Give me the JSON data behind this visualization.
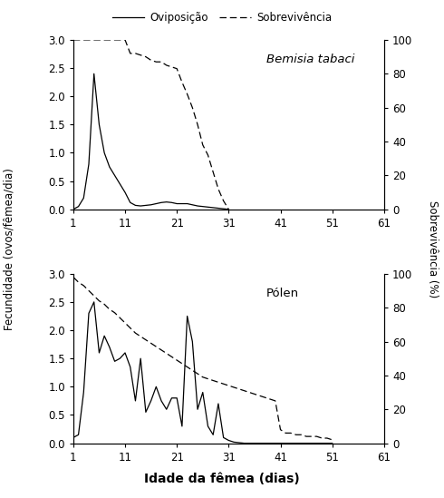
{
  "title1": "Bemisia tabaci",
  "title2": "Pólen",
  "xlabel": "Idade da fêmea (dias)",
  "ylabel_left": "Fecundidade (ovos/fêmea/dia)",
  "ylabel_right": "Sobrevivência (%)",
  "legend_oviposition": "Oviposição",
  "legend_survival": "Sobrevivência",
  "xticks": [
    1,
    11,
    21,
    31,
    41,
    51,
    61
  ],
  "yticks_left": [
    0,
    0.5,
    1,
    1.5,
    2,
    2.5,
    3
  ],
  "yticks_right": [
    0,
    20,
    40,
    60,
    80,
    100
  ],
  "bt_oviposition_x": [
    1,
    2,
    3,
    4,
    5,
    6,
    7,
    8,
    9,
    10,
    11,
    12,
    13,
    14,
    15,
    16,
    17,
    18,
    19,
    20,
    21,
    22,
    23,
    24,
    25,
    26,
    27,
    28,
    29,
    30,
    31
  ],
  "bt_oviposition_y": [
    0.0,
    0.05,
    0.2,
    0.8,
    2.4,
    1.5,
    1.0,
    0.75,
    0.6,
    0.45,
    0.3,
    0.12,
    0.07,
    0.06,
    0.07,
    0.08,
    0.1,
    0.12,
    0.13,
    0.12,
    0.1,
    0.1,
    0.1,
    0.08,
    0.06,
    0.05,
    0.04,
    0.03,
    0.02,
    0.01,
    0.0
  ],
  "bt_survival_x": [
    1,
    2,
    3,
    4,
    5,
    6,
    7,
    8,
    9,
    10,
    11,
    12,
    13,
    14,
    15,
    16,
    17,
    18,
    19,
    20,
    21,
    22,
    23,
    24,
    25,
    26,
    27,
    28,
    29,
    30,
    31
  ],
  "bt_survival_y": [
    100,
    100,
    100,
    100,
    100,
    100,
    100,
    100,
    100,
    100,
    100,
    92,
    92,
    91,
    90,
    88,
    87,
    87,
    85,
    84,
    83,
    75,
    68,
    60,
    50,
    38,
    32,
    22,
    12,
    5,
    0
  ],
  "polen_oviposition_x": [
    1,
    2,
    3,
    4,
    5,
    6,
    7,
    8,
    9,
    10,
    11,
    12,
    13,
    14,
    15,
    16,
    17,
    18,
    19,
    20,
    21,
    22,
    23,
    24,
    25,
    26,
    27,
    28,
    29,
    30,
    31,
    32,
    33,
    34,
    35,
    36,
    37,
    38,
    39,
    40,
    41,
    42,
    43,
    44,
    45,
    46,
    47,
    48,
    49,
    50,
    51
  ],
  "polen_oviposition_y": [
    0.1,
    0.15,
    0.9,
    2.3,
    2.5,
    1.6,
    1.9,
    1.7,
    1.45,
    1.5,
    1.6,
    1.35,
    0.75,
    1.5,
    0.55,
    0.75,
    1.0,
    0.75,
    0.6,
    0.8,
    0.8,
    0.3,
    2.25,
    1.8,
    0.6,
    0.9,
    0.3,
    0.15,
    0.7,
    0.1,
    0.05,
    0.02,
    0.01,
    0.0,
    0.0,
    0.0,
    0.0,
    0.0,
    0.0,
    0.0,
    0.0,
    0.0,
    0.0,
    0.0,
    0.0,
    0.0,
    0.0,
    0.0,
    0.0,
    0.0,
    0.0
  ],
  "polen_survival_x": [
    1,
    2,
    3,
    4,
    5,
    6,
    7,
    8,
    9,
    10,
    11,
    12,
    13,
    14,
    15,
    16,
    17,
    18,
    19,
    20,
    21,
    22,
    23,
    24,
    25,
    26,
    27,
    28,
    29,
    30,
    31,
    32,
    33,
    34,
    35,
    36,
    37,
    38,
    39,
    40,
    41,
    42,
    43,
    44,
    45,
    46,
    47,
    48,
    49,
    50,
    51
  ],
  "polen_survival_y": [
    98,
    95,
    93,
    90,
    87,
    84,
    82,
    79,
    77,
    74,
    71,
    68,
    65,
    63,
    61,
    59,
    57,
    55,
    53,
    51,
    49,
    47,
    45,
    43,
    41,
    39,
    38,
    37,
    36,
    35,
    34,
    33,
    32,
    31,
    30,
    29,
    28,
    27,
    26,
    25,
    8,
    6,
    6,
    5,
    5,
    4,
    4,
    4,
    3,
    3,
    2
  ]
}
